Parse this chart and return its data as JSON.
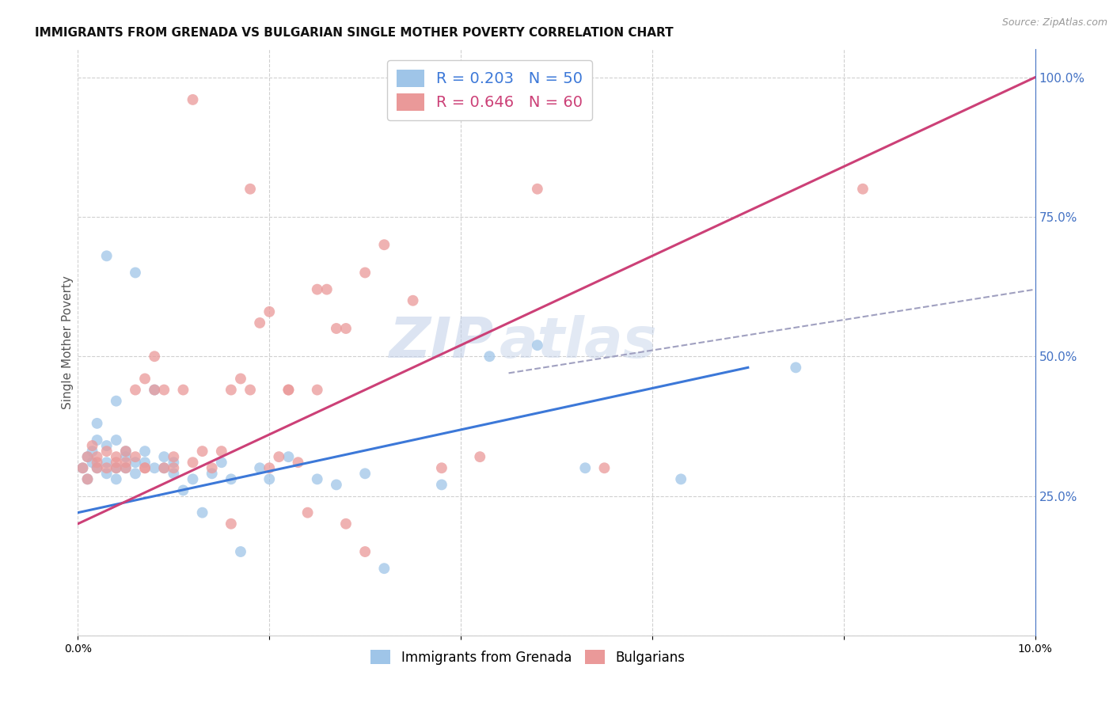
{
  "title": "IMMIGRANTS FROM GRENADA VS BULGARIAN SINGLE MOTHER POVERTY CORRELATION CHART",
  "source": "Source: ZipAtlas.com",
  "ylabel": "Single Mother Poverty",
  "xlim": [
    0.0,
    0.1
  ],
  "ylim": [
    0.0,
    1.05
  ],
  "xticks": [
    0.0,
    0.02,
    0.04,
    0.06,
    0.08,
    0.1
  ],
  "xticklabels": [
    "0.0%",
    "",
    "",
    "",
    "",
    "10.0%"
  ],
  "yticks_right": [
    0.25,
    0.5,
    0.75,
    1.0
  ],
  "ytick_right_labels": [
    "25.0%",
    "50.0%",
    "75.0%",
    "100.0%"
  ],
  "series1_color": "#9fc5e8",
  "series2_color": "#ea9999",
  "series1_edge": "#9fc5e8",
  "series2_edge": "#ea9999",
  "line1_color": "#3c78d8",
  "line2_color": "#cc4077",
  "dash_color": "#a0a0c0",
  "series1_label": "Immigrants from Grenada",
  "series2_label": "Bulgarians",
  "R1": 0.203,
  "N1": 50,
  "R2": 0.646,
  "N2": 60,
  "legend_R1_color": "#3c78d8",
  "legend_R2_color": "#cc4077",
  "legend_N1_color": "#3c78d8",
  "legend_N2_color": "#cc4077",
  "blue_line_x0": 0.0,
  "blue_line_y0": 0.22,
  "blue_line_x1": 0.07,
  "blue_line_y1": 0.48,
  "pink_line_x0": 0.0,
  "pink_line_y0": 0.2,
  "pink_line_x1": 0.1,
  "pink_line_y1": 1.0,
  "dash_line_x0": 0.045,
  "dash_line_y0": 0.47,
  "dash_line_x1": 0.1,
  "dash_line_y1": 0.62,
  "watermark_zip": "ZIP",
  "watermark_atlas": "atlas",
  "watermark_color": "#c8d8ee",
  "background_color": "#ffffff",
  "grid_color": "#d0d0d0",
  "title_fontsize": 11,
  "label_fontsize": 11,
  "tick_fontsize": 10,
  "right_tick_color": "#4472c4",
  "s1_x": [
    0.0005,
    0.001,
    0.001,
    0.0015,
    0.0015,
    0.002,
    0.002,
    0.002,
    0.003,
    0.003,
    0.003,
    0.003,
    0.004,
    0.004,
    0.004,
    0.004,
    0.005,
    0.005,
    0.005,
    0.006,
    0.006,
    0.006,
    0.007,
    0.007,
    0.008,
    0.008,
    0.009,
    0.009,
    0.01,
    0.01,
    0.011,
    0.012,
    0.013,
    0.014,
    0.015,
    0.016,
    0.017,
    0.019,
    0.02,
    0.022,
    0.025,
    0.027,
    0.03,
    0.032,
    0.038,
    0.043,
    0.048,
    0.053,
    0.063,
    0.075
  ],
  "s1_y": [
    0.3,
    0.32,
    0.28,
    0.33,
    0.31,
    0.3,
    0.35,
    0.38,
    0.29,
    0.31,
    0.34,
    0.68,
    0.3,
    0.35,
    0.28,
    0.42,
    0.32,
    0.33,
    0.3,
    0.29,
    0.31,
    0.65,
    0.33,
    0.31,
    0.3,
    0.44,
    0.3,
    0.32,
    0.29,
    0.31,
    0.26,
    0.28,
    0.22,
    0.29,
    0.31,
    0.28,
    0.15,
    0.3,
    0.28,
    0.32,
    0.28,
    0.27,
    0.29,
    0.12,
    0.27,
    0.5,
    0.52,
    0.3,
    0.28,
    0.48
  ],
  "s2_x": [
    0.0005,
    0.001,
    0.001,
    0.0015,
    0.002,
    0.002,
    0.002,
    0.003,
    0.003,
    0.004,
    0.004,
    0.004,
    0.005,
    0.005,
    0.005,
    0.006,
    0.006,
    0.007,
    0.007,
    0.007,
    0.008,
    0.008,
    0.009,
    0.009,
    0.01,
    0.01,
    0.011,
    0.012,
    0.013,
    0.014,
    0.015,
    0.016,
    0.017,
    0.018,
    0.019,
    0.02,
    0.021,
    0.022,
    0.023,
    0.024,
    0.025,
    0.026,
    0.027,
    0.028,
    0.03,
    0.032,
    0.035,
    0.038,
    0.042,
    0.048,
    0.012,
    0.016,
    0.02,
    0.025,
    0.03,
    0.018,
    0.022,
    0.028,
    0.082,
    0.055
  ],
  "s2_y": [
    0.3,
    0.32,
    0.28,
    0.34,
    0.3,
    0.31,
    0.32,
    0.3,
    0.33,
    0.31,
    0.3,
    0.32,
    0.31,
    0.33,
    0.3,
    0.32,
    0.44,
    0.3,
    0.46,
    0.3,
    0.44,
    0.5,
    0.3,
    0.44,
    0.3,
    0.32,
    0.44,
    0.31,
    0.33,
    0.3,
    0.33,
    0.44,
    0.46,
    0.44,
    0.56,
    0.3,
    0.32,
    0.44,
    0.31,
    0.22,
    0.44,
    0.62,
    0.55,
    0.55,
    0.65,
    0.7,
    0.6,
    0.3,
    0.32,
    0.8,
    0.96,
    0.2,
    0.58,
    0.62,
    0.15,
    0.8,
    0.44,
    0.2,
    0.8,
    0.3
  ]
}
